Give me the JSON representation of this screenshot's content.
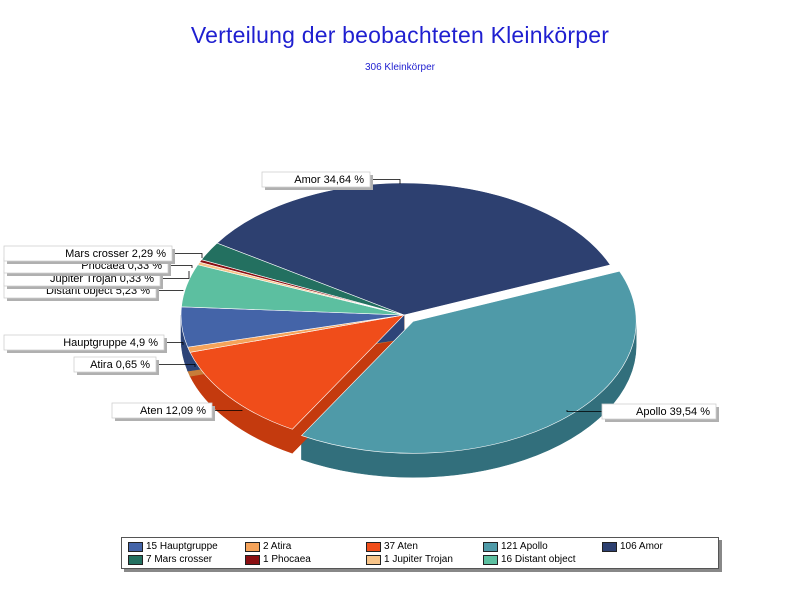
{
  "chart": {
    "title": "Verteilung der beobachteten Kleinkörper",
    "subtitle": "306 Kleinkörper"
  },
  "chart_data": {
    "type": "pie",
    "title": "Verteilung der beobachteten Kleinkörper",
    "subtitle": "306 Kleinkörper",
    "total": 306,
    "slices": [
      {
        "name": "Amor",
        "count": 106,
        "percent": 34.64,
        "label": "Amor 34,64 %",
        "color": "#2d4070",
        "side": "#1a2645",
        "exploded": false
      },
      {
        "name": "Apollo",
        "count": 121,
        "percent": 39.54,
        "label": "Apollo 39,54 %",
        "color": "#4f9aa8",
        "side": "#326f7c",
        "exploded": true
      },
      {
        "name": "Aten",
        "count": 37,
        "percent": 12.09,
        "label": "Aten 12,09 %",
        "color": "#f04d1a",
        "side": "#c43a0e",
        "exploded": false
      },
      {
        "name": "Atira",
        "count": 2,
        "percent": 0.65,
        "label": "Atira 0,65 %",
        "color": "#f5a35a",
        "side": "#c77d3a",
        "exploded": false
      },
      {
        "name": "Hauptgruppe",
        "count": 15,
        "percent": 4.9,
        "label": "Hauptgruppe 4,9 %",
        "color": "#4464a8",
        "side": "#2d4478",
        "exploded": false
      },
      {
        "name": "Distant object",
        "count": 16,
        "percent": 5.23,
        "label": "Distant object 5,23 %",
        "color": "#5cbfa0",
        "side": "#3c907a",
        "exploded": false
      },
      {
        "name": "Jupiter Trojan",
        "count": 1,
        "percent": 0.33,
        "label": "Jupiter Trojan 0,33 %",
        "color": "#f8c488",
        "side": "#c99a62",
        "exploded": false
      },
      {
        "name": "Phocaea",
        "count": 1,
        "percent": 0.33,
        "label": "Phocaea 0,33 %",
        "color": "#8a0f12",
        "side": "#5a0809",
        "exploded": false
      },
      {
        "name": "Mars crosser",
        "count": 7,
        "percent": 2.29,
        "label": "Mars crosser 2,29 %",
        "color": "#237060",
        "side": "#144a3e",
        "exploded": false
      }
    ],
    "legend": {
      "placement": "bottom",
      "items": [
        {
          "text": "15 Hauptgruppe",
          "color": "#4464a8"
        },
        {
          "text": "2 Atira",
          "color": "#f5a35a"
        },
        {
          "text": "37 Aten",
          "color": "#f04d1a"
        },
        {
          "text": "121 Apollo",
          "color": "#4f9aa8"
        },
        {
          "text": "106 Amor",
          "color": "#2d4070"
        },
        {
          "text": "7 Mars crosser",
          "color": "#237060"
        },
        {
          "text": "1 Phocaea",
          "color": "#8a0f12"
        },
        {
          "text": "1 Jupiter Trojan",
          "color": "#f8c488"
        },
        {
          "text": "16 Distant object",
          "color": "#5cbfa0"
        }
      ]
    }
  }
}
